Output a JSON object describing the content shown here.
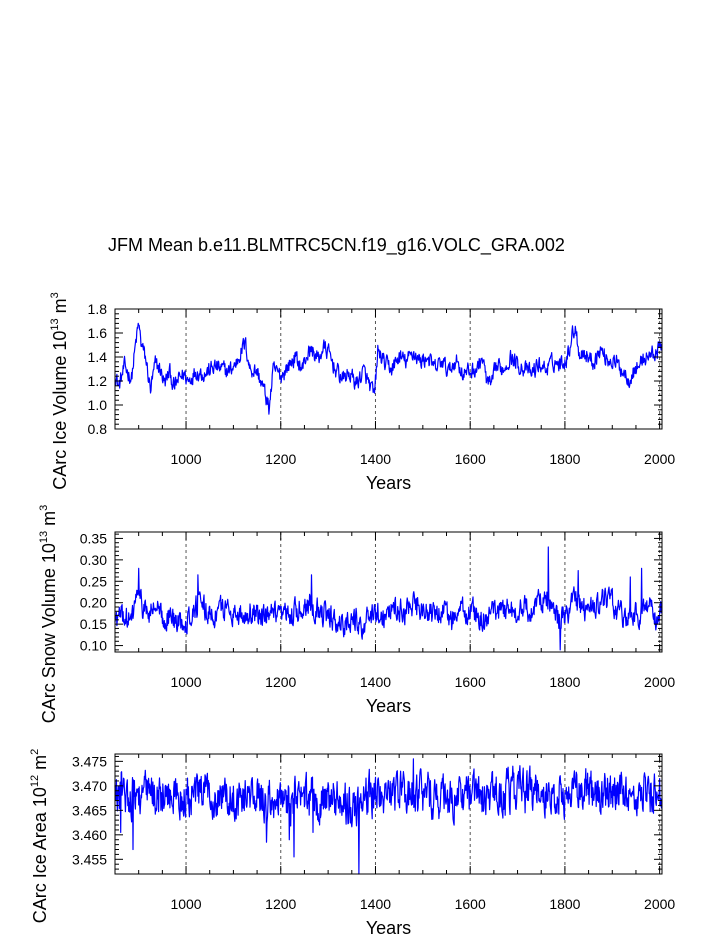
{
  "title": "JFM Mean b.e11.BLMTRC5CN.f19_g16.VOLC_GRA.002",
  "chart_data": [
    {
      "type": "line",
      "id": "ice-volume",
      "ylabel_main": "CArc Ice Volume 10",
      "ylabel_exp": "13",
      "ylabel_unit": " m",
      "ylabel_unit_exp": "3",
      "xlabel": "Years",
      "xlim": [
        850,
        2005
      ],
      "ylim": [
        0.8,
        1.8
      ],
      "xticks": [
        1000,
        1200,
        1400,
        1600,
        1800,
        2000
      ],
      "xtick_labels": [
        "1000",
        "1200",
        "1400",
        "1600",
        "1800",
        "2000"
      ],
      "yticks": [
        0.8,
        1.0,
        1.2,
        1.4,
        1.6,
        1.8
      ],
      "ytick_labels": [
        "0.8",
        "1.0",
        "1.2",
        "1.4",
        "1.6",
        "1.8"
      ],
      "grid": "vertical-dashed",
      "color": "#0000ff",
      "series_x_start": 850,
      "series_x_step": 1,
      "anchors": [
        [
          850,
          1.26
        ],
        [
          858,
          1.15
        ],
        [
          870,
          1.32
        ],
        [
          885,
          1.22
        ],
        [
          895,
          1.55
        ],
        [
          900,
          1.67
        ],
        [
          905,
          1.52
        ],
        [
          915,
          1.38
        ],
        [
          925,
          1.12
        ],
        [
          935,
          1.34
        ],
        [
          945,
          1.3
        ],
        [
          955,
          1.18
        ],
        [
          965,
          1.28
        ],
        [
          975,
          1.14
        ],
        [
          985,
          1.22
        ],
        [
          995,
          1.26
        ],
        [
          1005,
          1.2
        ],
        [
          1020,
          1.28
        ],
        [
          1040,
          1.26
        ],
        [
          1060,
          1.32
        ],
        [
          1075,
          1.3
        ],
        [
          1090,
          1.28
        ],
        [
          1105,
          1.34
        ],
        [
          1115,
          1.44
        ],
        [
          1125,
          1.52
        ],
        [
          1135,
          1.3
        ],
        [
          1150,
          1.28
        ],
        [
          1165,
          1.12
        ],
        [
          1175,
          0.97
        ],
        [
          1185,
          1.3
        ],
        [
          1200,
          1.24
        ],
        [
          1215,
          1.32
        ],
        [
          1230,
          1.4
        ],
        [
          1245,
          1.3
        ],
        [
          1255,
          1.42
        ],
        [
          1265,
          1.46
        ],
        [
          1280,
          1.38
        ],
        [
          1290,
          1.48
        ],
        [
          1300,
          1.44
        ],
        [
          1315,
          1.3
        ],
        [
          1330,
          1.22
        ],
        [
          1345,
          1.26
        ],
        [
          1360,
          1.18
        ],
        [
          1375,
          1.28
        ],
        [
          1390,
          1.14
        ],
        [
          1398,
          1.08
        ],
        [
          1405,
          1.45
        ],
        [
          1420,
          1.34
        ],
        [
          1435,
          1.3
        ],
        [
          1450,
          1.4
        ],
        [
          1465,
          1.36
        ],
        [
          1480,
          1.44
        ],
        [
          1495,
          1.36
        ],
        [
          1510,
          1.4
        ],
        [
          1525,
          1.3
        ],
        [
          1540,
          1.36
        ],
        [
          1555,
          1.28
        ],
        [
          1570,
          1.38
        ],
        [
          1585,
          1.26
        ],
        [
          1600,
          1.28
        ],
        [
          1615,
          1.3
        ],
        [
          1625,
          1.4
        ],
        [
          1635,
          1.2
        ],
        [
          1645,
          1.16
        ],
        [
          1655,
          1.32
        ],
        [
          1670,
          1.3
        ],
        [
          1685,
          1.4
        ],
        [
          1700,
          1.34
        ],
        [
          1715,
          1.3
        ],
        [
          1730,
          1.26
        ],
        [
          1745,
          1.34
        ],
        [
          1760,
          1.3
        ],
        [
          1775,
          1.36
        ],
        [
          1790,
          1.34
        ],
        [
          1805,
          1.4
        ],
        [
          1815,
          1.58
        ],
        [
          1822,
          1.66
        ],
        [
          1830,
          1.44
        ],
        [
          1845,
          1.42
        ],
        [
          1860,
          1.36
        ],
        [
          1875,
          1.46
        ],
        [
          1890,
          1.38
        ],
        [
          1905,
          1.36
        ],
        [
          1920,
          1.3
        ],
        [
          1935,
          1.22
        ],
        [
          1950,
          1.3
        ],
        [
          1965,
          1.38
        ],
        [
          1980,
          1.42
        ],
        [
          1995,
          1.44
        ],
        [
          2005,
          1.5
        ]
      ],
      "noise_amp": 0.06
    },
    {
      "type": "line",
      "id": "snow-volume",
      "ylabel_main": "CArc Snow Volume 10",
      "ylabel_exp": "13",
      "ylabel_unit": " m",
      "ylabel_unit_exp": "3",
      "xlabel": "Years",
      "xlim": [
        850,
        2005
      ],
      "ylim": [
        0.085,
        0.365
      ],
      "xticks": [
        1000,
        1200,
        1400,
        1600,
        1800,
        2000
      ],
      "xtick_labels": [
        "1000",
        "1200",
        "1400",
        "1600",
        "1800",
        "2000"
      ],
      "yticks": [
        0.1,
        0.15,
        0.2,
        0.25,
        0.3,
        0.35
      ],
      "ytick_labels": [
        "0.10",
        "0.15",
        "0.20",
        "0.25",
        "0.30",
        "0.35"
      ],
      "grid": "vertical-dashed",
      "color": "#0000ff",
      "series_x_start": 850,
      "series_x_step": 1,
      "anchors": [
        [
          850,
          0.16
        ],
        [
          870,
          0.17
        ],
        [
          885,
          0.15
        ],
        [
          895,
          0.22
        ],
        [
          905,
          0.2
        ],
        [
          920,
          0.17
        ],
        [
          935,
          0.19
        ],
        [
          950,
          0.16
        ],
        [
          965,
          0.17
        ],
        [
          980,
          0.15
        ],
        [
          995,
          0.16
        ],
        [
          1010,
          0.17
        ],
        [
          1025,
          0.2
        ],
        [
          1040,
          0.18
        ],
        [
          1060,
          0.17
        ],
        [
          1080,
          0.19
        ],
        [
          1100,
          0.18
        ],
        [
          1120,
          0.17
        ],
        [
          1140,
          0.18
        ],
        [
          1160,
          0.16
        ],
        [
          1180,
          0.17
        ],
        [
          1200,
          0.16
        ],
        [
          1215,
          0.17
        ],
        [
          1230,
          0.18
        ],
        [
          1245,
          0.19
        ],
        [
          1260,
          0.2
        ],
        [
          1275,
          0.19
        ],
        [
          1290,
          0.17
        ],
        [
          1310,
          0.16
        ],
        [
          1330,
          0.15
        ],
        [
          1350,
          0.16
        ],
        [
          1370,
          0.15
        ],
        [
          1390,
          0.16
        ],
        [
          1405,
          0.18
        ],
        [
          1420,
          0.17
        ],
        [
          1440,
          0.19
        ],
        [
          1460,
          0.18
        ],
        [
          1480,
          0.19
        ],
        [
          1500,
          0.18
        ],
        [
          1520,
          0.17
        ],
        [
          1540,
          0.18
        ],
        [
          1560,
          0.16
        ],
        [
          1580,
          0.18
        ],
        [
          1600,
          0.18
        ],
        [
          1620,
          0.17
        ],
        [
          1635,
          0.15
        ],
        [
          1650,
          0.18
        ],
        [
          1670,
          0.19
        ],
        [
          1690,
          0.18
        ],
        [
          1710,
          0.19
        ],
        [
          1730,
          0.18
        ],
        [
          1745,
          0.2
        ],
        [
          1760,
          0.22
        ],
        [
          1775,
          0.17
        ],
        [
          1790,
          0.16
        ],
        [
          1805,
          0.18
        ],
        [
          1820,
          0.2
        ],
        [
          1840,
          0.19
        ],
        [
          1860,
          0.18
        ],
        [
          1875,
          0.2
        ],
        [
          1890,
          0.21
        ],
        [
          1905,
          0.19
        ],
        [
          1920,
          0.17
        ],
        [
          1940,
          0.16
        ],
        [
          1960,
          0.18
        ],
        [
          1975,
          0.19
        ],
        [
          1990,
          0.17
        ],
        [
          2005,
          0.17
        ]
      ],
      "spikes": [
        [
          900,
          0.28
        ],
        [
          1025,
          0.265
        ],
        [
          1265,
          0.265
        ],
        [
          1765,
          0.33
        ],
        [
          1828,
          0.275
        ],
        [
          1938,
          0.26
        ],
        [
          1962,
          0.28
        ],
        [
          1790,
          0.09
        ]
      ],
      "noise_amp": 0.025
    },
    {
      "type": "line",
      "id": "ice-area",
      "ylabel_main": "CArc Ice Area 10",
      "ylabel_exp": "12",
      "ylabel_unit": " m",
      "ylabel_unit_exp": "2",
      "xlabel": "Years",
      "xlim": [
        850,
        2005
      ],
      "ylim": [
        3.452,
        3.4765
      ],
      "xticks": [
        1000,
        1200,
        1400,
        1600,
        1800,
        2000
      ],
      "xtick_labels": [
        "1000",
        "1200",
        "1400",
        "1600",
        "1800",
        "2000"
      ],
      "yticks": [
        3.455,
        3.46,
        3.465,
        3.47,
        3.475
      ],
      "ytick_labels": [
        "3.455",
        "3.460",
        "3.465",
        "3.470",
        "3.475"
      ],
      "grid": "vertical-dashed",
      "color": "#0000ff",
      "series_x_start": 850,
      "series_x_step": 1,
      "anchors": [
        [
          850,
          3.468
        ],
        [
          900,
          3.4685
        ],
        [
          950,
          3.468
        ],
        [
          1000,
          3.4675
        ],
        [
          1050,
          3.4685
        ],
        [
          1100,
          3.468
        ],
        [
          1150,
          3.4675
        ],
        [
          1200,
          3.4665
        ],
        [
          1250,
          3.4675
        ],
        [
          1300,
          3.467
        ],
        [
          1350,
          3.4665
        ],
        [
          1400,
          3.4685
        ],
        [
          1450,
          3.4685
        ],
        [
          1500,
          3.468
        ],
        [
          1550,
          3.4675
        ],
        [
          1600,
          3.4675
        ],
        [
          1650,
          3.468
        ],
        [
          1700,
          3.469
        ],
        [
          1750,
          3.4685
        ],
        [
          1800,
          3.4685
        ],
        [
          1850,
          3.469
        ],
        [
          1900,
          3.468
        ],
        [
          1950,
          3.4685
        ],
        [
          2005,
          3.468
        ]
      ],
      "spikes": [
        [
          862,
          3.4605
        ],
        [
          888,
          3.457
        ],
        [
          1170,
          3.4585
        ],
        [
          1218,
          3.459
        ],
        [
          1228,
          3.4555
        ],
        [
          1365,
          3.452
        ],
        [
          1480,
          3.4755
        ],
        [
          1268,
          3.4605
        ],
        [
          1690,
          3.474
        ]
      ],
      "noise_amp": 0.0038
    }
  ]
}
